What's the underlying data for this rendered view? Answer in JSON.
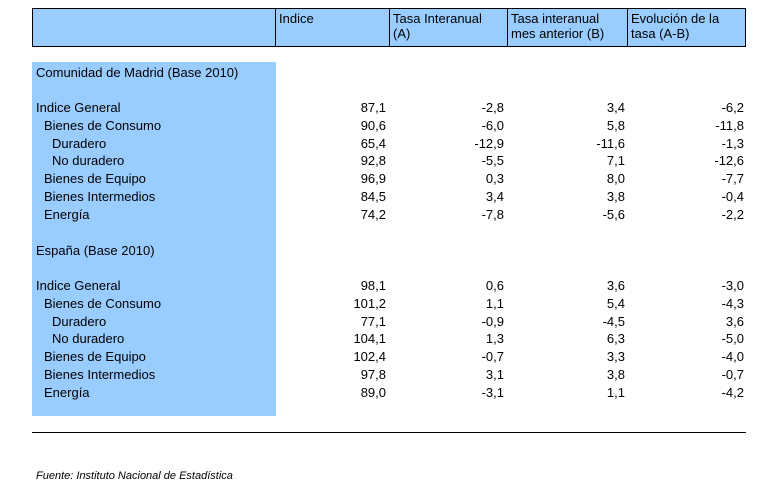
{
  "header": {
    "col0": "",
    "col1": "Indice",
    "col2": "Tasa Interanual\n(A)",
    "col3": "Tasa interanual\nmes anterior (B)",
    "col4": "Evolución de la\ntasa (A-B)"
  },
  "sections": [
    {
      "title": "Comunidad de Madrid (Base 2010)",
      "rows": [
        {
          "label": "Indice General",
          "indent": 0,
          "values": [
            "87,1",
            "-2,8",
            "3,4",
            "-6,2"
          ]
        },
        {
          "label": "Bienes de Consumo",
          "indent": 1,
          "values": [
            "90,6",
            "-6,0",
            "5,8",
            "-11,8"
          ]
        },
        {
          "label": "Duradero",
          "indent": 2,
          "values": [
            "65,4",
            "-12,9",
            "-11,6",
            "-1,3"
          ]
        },
        {
          "label": "No duradero",
          "indent": 2,
          "values": [
            "92,8",
            "-5,5",
            "7,1",
            "-12,6"
          ]
        },
        {
          "label": "Bienes de Equipo",
          "indent": 1,
          "values": [
            "96,9",
            "0,3",
            "8,0",
            "-7,7"
          ]
        },
        {
          "label": "Bienes Intermedios",
          "indent": 1,
          "values": [
            "84,5",
            "3,4",
            "3,8",
            "-0,4"
          ]
        },
        {
          "label": "Energía",
          "indent": 1,
          "values": [
            "74,2",
            "-7,8",
            "-5,6",
            "-2,2"
          ]
        }
      ]
    },
    {
      "title": "España (Base 2010)",
      "rows": [
        {
          "label": "Indice General",
          "indent": 0,
          "values": [
            "98,1",
            "0,6",
            "3,6",
            "-3,0"
          ]
        },
        {
          "label": "Bienes de Consumo",
          "indent": 1,
          "values": [
            "101,2",
            "1,1",
            "5,4",
            "-4,3"
          ]
        },
        {
          "label": "Duradero",
          "indent": 2,
          "values": [
            "77,1",
            "-0,9",
            "-4,5",
            "3,6"
          ]
        },
        {
          "label": "No duradero",
          "indent": 2,
          "values": [
            "104,1",
            "1,3",
            "6,3",
            "-5,0"
          ]
        },
        {
          "label": "Bienes de Equipo",
          "indent": 1,
          "values": [
            "102,4",
            "-0,7",
            "3,3",
            "-4,0"
          ]
        },
        {
          "label": "Bienes Intermedios",
          "indent": 1,
          "values": [
            "97,8",
            "3,1",
            "3,8",
            "-0,7"
          ]
        },
        {
          "label": "Energía",
          "indent": 1,
          "values": [
            "89,0",
            "-3,1",
            "1,1",
            "-4,2"
          ]
        }
      ]
    }
  ],
  "footer": {
    "source": "Fuente: Instituto Nacional de Estadística"
  },
  "colors": {
    "header_bg": "#99ccff",
    "label_col_bg": "#99ccff"
  }
}
